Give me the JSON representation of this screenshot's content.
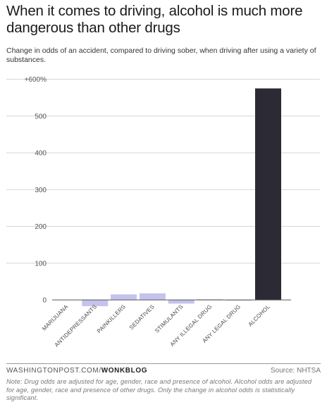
{
  "header": {
    "title": "When it comes to driving, alcohol is much more dangerous than other drugs",
    "subtitle": "Change in odds of an accident, compared to driving sober, when driving after using a variety of substances."
  },
  "footer": {
    "credit_prefix": "WASHINGTONPOST.COM/",
    "credit_brand": "WONKBLOG",
    "source": "Source: NHTSA",
    "note": "Note: Drug odds are adjusted for age, gender, race and presence of alcohol. Alcohol odds are adjusted for age, gender, race and presence of other drugs. Only the change in alcohol odds is statistically significant."
  },
  "colors": {
    "drug_bar": "#c5c3ec",
    "alcohol_bar": "#2c2b35",
    "gridline": "#d6d6d6",
    "baseline": "#555555"
  },
  "chart_data": {
    "type": "bar",
    "categories": [
      "MARIJUANA",
      "ANTIDEPRESSANTS",
      "PAINKILLERS",
      "SEDATIVES",
      "STIMULANTS",
      "ANY ILLEGAL DRUG",
      "ANY LEGAL DRUG",
      "ALCOHOL"
    ],
    "values": [
      0,
      -17,
      15,
      18,
      -10,
      2,
      -1,
      575
    ],
    "highlight": "ALCOHOL",
    "ylim": [
      -20,
      600
    ],
    "yticks": [
      0,
      100,
      200,
      300,
      400,
      500,
      600
    ],
    "ytick_labels": [
      "0",
      "100",
      "200",
      "300",
      "400",
      "500",
      "+600%"
    ],
    "grid": true
  }
}
